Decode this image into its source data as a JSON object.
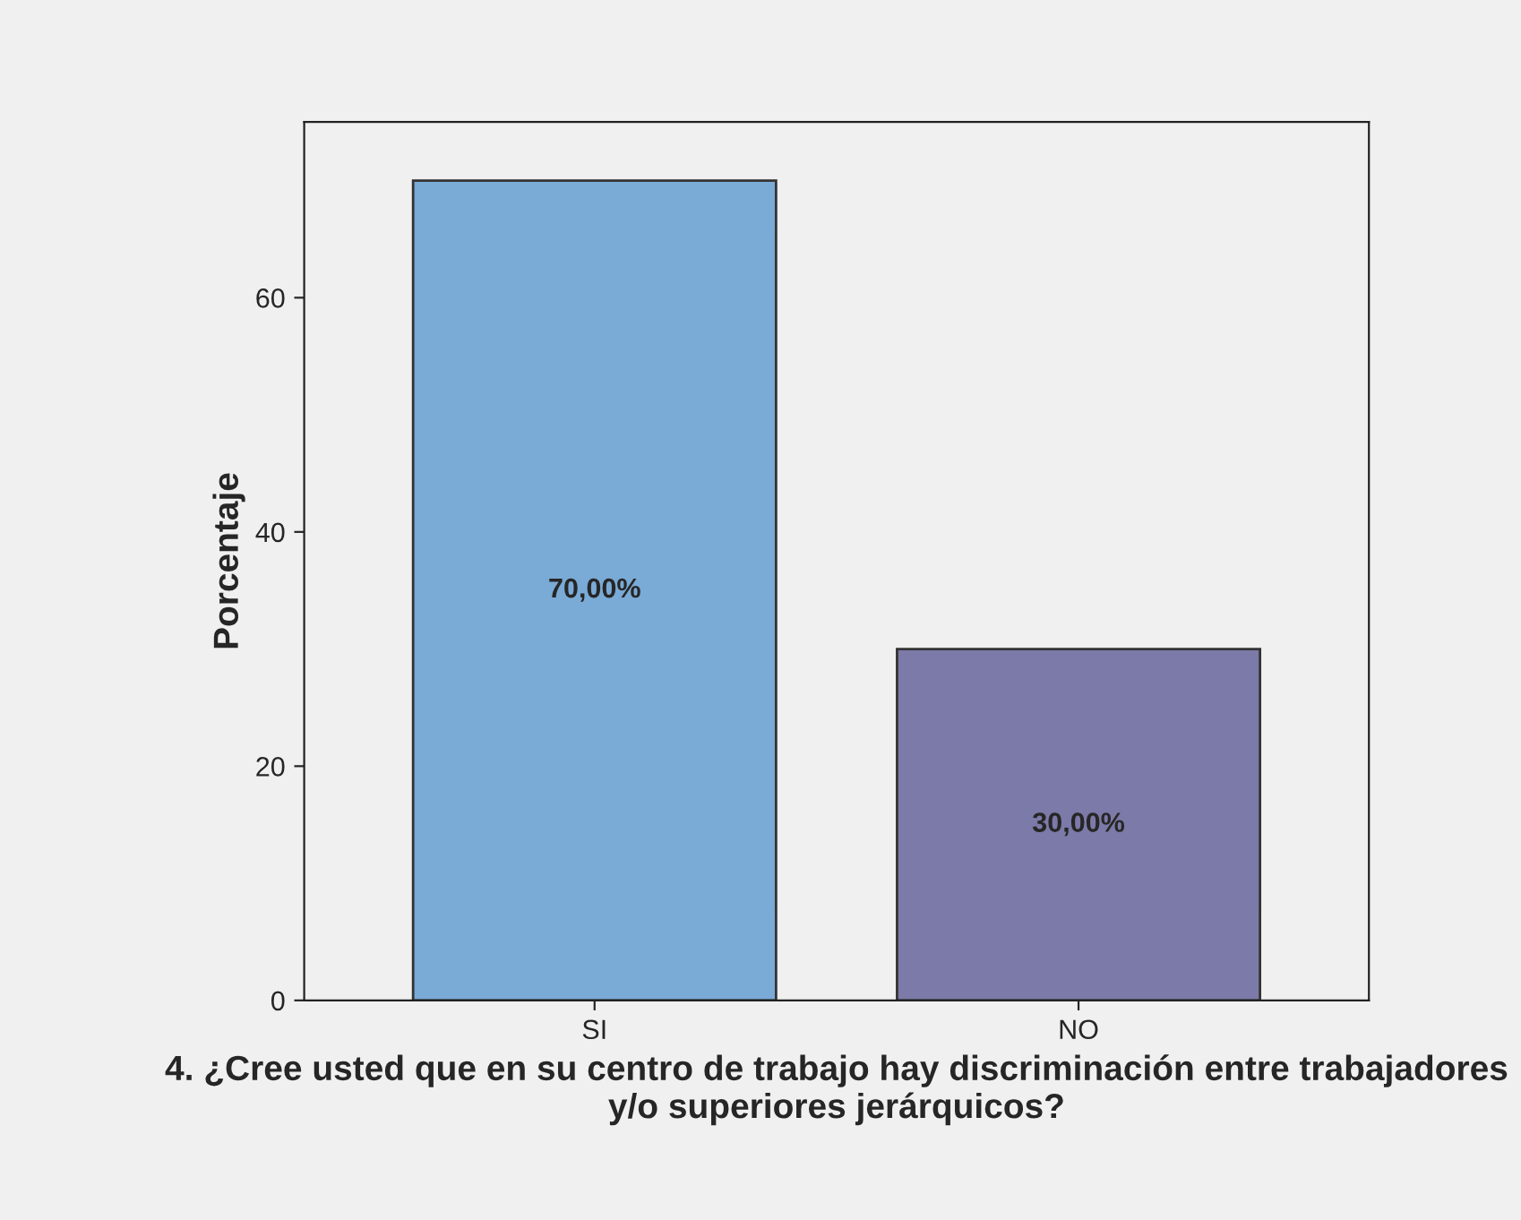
{
  "chart_data": {
    "type": "bar",
    "xlabel": "4. ¿Cree usted que en su centro de trabajo hay discriminación entre trabajadores y/o superiores jerárquicos?",
    "ylabel": "Porcentaje",
    "categories": [
      "SI",
      "NO"
    ],
    "values": [
      70,
      30
    ],
    "colors": [
      "#7aaad6",
      "#7b7aa8"
    ],
    "value_labels": [
      "70,00%",
      "30,00%"
    ],
    "ylim": [
      0,
      75
    ],
    "yticks": [
      0,
      20,
      40,
      60
    ],
    "grid": false
  }
}
